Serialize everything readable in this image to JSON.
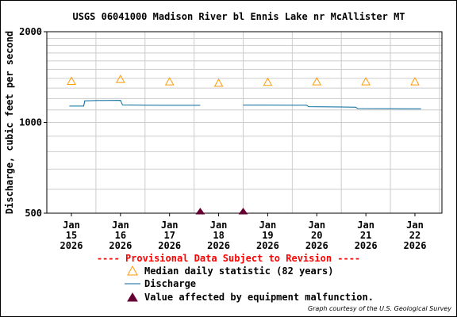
{
  "chart_data": {
    "type": "line",
    "title": "USGS 06041000 Madison River bl Ennis Lake nr McAllister MT",
    "ylabel": "Discharge, cubic feet per second",
    "xlabel": "",
    "y_scale": "log",
    "ylim": [
      500,
      2000
    ],
    "y_ticks": [
      "500",
      "1000",
      "2000"
    ],
    "xlim": [
      "2026-01-15T00:00",
      "2026-01-22T00:00"
    ],
    "x_ticks": [
      {
        "month": "Jan",
        "day": "15",
        "year": "2026"
      },
      {
        "month": "Jan",
        "day": "16",
        "year": "2026"
      },
      {
        "month": "Jan",
        "day": "17",
        "year": "2026"
      },
      {
        "month": "Jan",
        "day": "18",
        "year": "2026"
      },
      {
        "month": "Jan",
        "day": "19",
        "year": "2026"
      },
      {
        "month": "Jan",
        "day": "20",
        "year": "2026"
      },
      {
        "month": "Jan",
        "day": "21",
        "year": "2026"
      },
      {
        "month": "Jan",
        "day": "22",
        "year": "2026"
      }
    ],
    "grid": true,
    "series": [
      {
        "name": "Median daily statistic (82 years)",
        "kind": "marker",
        "color": "#ff9900",
        "points": [
          [
            "2026-01-15T00:00",
            1370
          ],
          [
            "2026-01-16T00:00",
            1390
          ],
          [
            "2026-01-17T00:00",
            1365
          ],
          [
            "2026-01-18T00:00",
            1350
          ],
          [
            "2026-01-19T00:00",
            1360
          ],
          [
            "2026-01-20T00:00",
            1365
          ],
          [
            "2026-01-21T00:00",
            1365
          ],
          [
            "2026-01-22T00:00",
            1365
          ]
        ]
      },
      {
        "name": "Discharge",
        "kind": "line",
        "color": "#006699",
        "segments": [
          [
            [
              "2026-01-14T23:00",
              1133
            ],
            [
              "2026-01-15T06:00",
              1133
            ],
            [
              "2026-01-15T06:30",
              1180
            ],
            [
              "2026-01-15T12:00",
              1182
            ],
            [
              "2026-01-15T18:00",
              1183
            ],
            [
              "2026-01-16T00:00",
              1184
            ],
            [
              "2026-01-16T01:00",
              1143
            ],
            [
              "2026-01-16T12:00",
              1141
            ],
            [
              "2026-01-17T00:00",
              1140
            ],
            [
              "2026-01-17T12:00",
              1140
            ],
            [
              "2026-01-17T15:00",
              1140
            ]
          ],
          [
            [
              "2026-01-18T12:00",
              1142
            ],
            [
              "2026-01-19T00:00",
              1142
            ],
            [
              "2026-01-19T12:00",
              1141
            ],
            [
              "2026-01-19T19:00",
              1141
            ],
            [
              "2026-01-19T20:00",
              1128
            ],
            [
              "2026-01-20T12:00",
              1125
            ],
            [
              "2026-01-20T19:00",
              1124
            ],
            [
              "2026-01-20T20:00",
              1112
            ],
            [
              "2026-01-21T12:00",
              1111
            ],
            [
              "2026-01-22T00:00",
              1110
            ],
            [
              "2026-01-22T03:00",
              1110
            ]
          ]
        ]
      },
      {
        "name": "Value affected by equipment malfunction.",
        "kind": "marker",
        "color": "#660033",
        "points": [
          [
            "2026-01-17T15:00",
            500
          ],
          [
            "2026-01-18T12:00",
            500
          ]
        ]
      }
    ]
  },
  "notices": {
    "provisional": "---- Provisional Data Subject to Revision ----",
    "courtesy": "Graph courtesy of the U.S. Geological Survey"
  },
  "legend": {
    "median": "Median daily statistic (82 years)",
    "discharge": "Discharge",
    "malfunction": "Value affected by equipment malfunction."
  },
  "colors": {
    "median": "#ff9900",
    "discharge": "#006699",
    "malfunction": "#660033",
    "provisional": "#ff0000"
  }
}
